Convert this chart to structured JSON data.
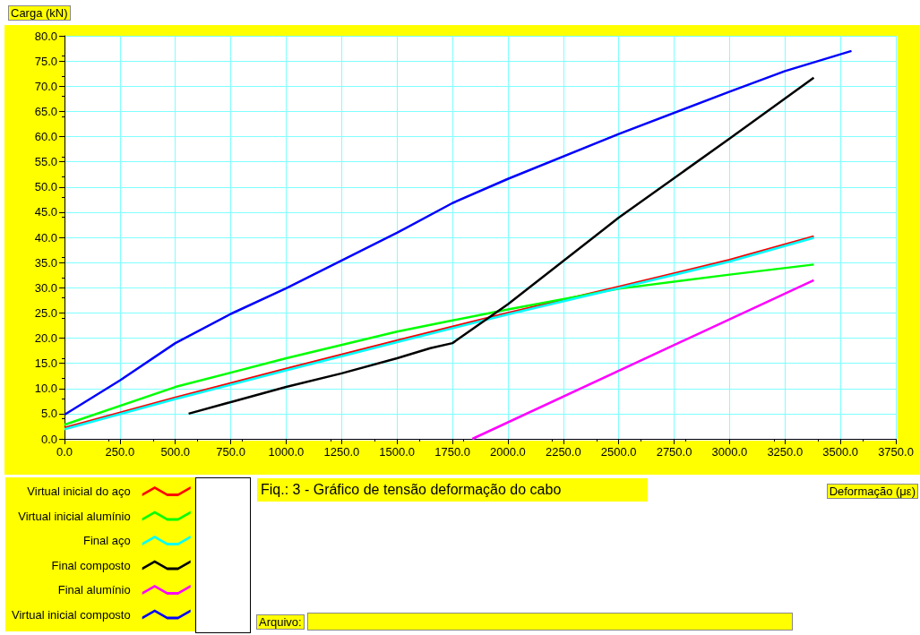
{
  "chart_data": {
    "type": "line",
    "title": "Fiq.: 3 - Gráfico de tensão deformação do cabo",
    "xlabel": "Deformação (με)",
    "ylabel": "Carga (kN)",
    "annotations": [
      "Arquivo:"
    ],
    "xlim": [
      0,
      3750
    ],
    "ylim": [
      0,
      80
    ],
    "xticks": [
      {
        "value": 0,
        "label": "0.0"
      },
      {
        "value": 250,
        "label": "250.0"
      },
      {
        "value": 500,
        "label": "500.0"
      },
      {
        "value": 750,
        "label": "750.0"
      },
      {
        "value": 1000,
        "label": "1000.0"
      },
      {
        "value": 1250,
        "label": "1250.0"
      },
      {
        "value": 1500,
        "label": "1500.0"
      },
      {
        "value": 1750,
        "label": "1750.0"
      },
      {
        "value": 2000,
        "label": "2000.0"
      },
      {
        "value": 2250,
        "label": "2250.0"
      },
      {
        "value": 2500,
        "label": "2500.0"
      },
      {
        "value": 2750,
        "label": "2750.0"
      },
      {
        "value": 3000,
        "label": "3000.0"
      },
      {
        "value": 3250,
        "label": "3250.0"
      },
      {
        "value": 3500,
        "label": "3500.0"
      },
      {
        "value": 3750,
        "label": "3750.0"
      }
    ],
    "yticks": [
      {
        "value": 0,
        "label": "0.0"
      },
      {
        "value": 5,
        "label": "5.0"
      },
      {
        "value": 10,
        "label": "10.0"
      },
      {
        "value": 15,
        "label": "15.0"
      },
      {
        "value": 20,
        "label": "20.0"
      },
      {
        "value": 25,
        "label": "25.0"
      },
      {
        "value": 30,
        "label": "30.0"
      },
      {
        "value": 35,
        "label": "35.0"
      },
      {
        "value": 40,
        "label": "40.0"
      },
      {
        "value": 45,
        "label": "45.0"
      },
      {
        "value": 50,
        "label": "50.0"
      },
      {
        "value": 55,
        "label": "55.0"
      },
      {
        "value": 60,
        "label": "60.0"
      },
      {
        "value": 65,
        "label": "65.0"
      },
      {
        "value": 70,
        "label": "70.0"
      },
      {
        "value": 75,
        "label": "75.0"
      },
      {
        "value": 80,
        "label": "80.0"
      }
    ],
    "grid": true,
    "legend": "bottom left",
    "marker": "none",
    "line_style": "solid",
    "series": [
      {
        "name": "Virtual inicial do aço",
        "color": "#ff0000",
        "x": [
          0,
          500,
          1000,
          1500,
          2000,
          2500,
          3000,
          3380
        ],
        "values": [
          2.2,
          8.2,
          13.9,
          19.5,
          25.0,
          30.2,
          35.5,
          40.2
        ]
      },
      {
        "name": "Virtual inicial alumínio",
        "color": "#00ff00",
        "x": [
          0,
          500,
          1000,
          1500,
          1750,
          2000,
          2500,
          3000,
          3380
        ],
        "values": [
          2.8,
          10.3,
          16.0,
          21.3,
          23.5,
          25.7,
          29.8,
          32.6,
          34.6
        ]
      },
      {
        "name": "Final aço",
        "color": "#00ffff",
        "x": [
          0,
          500,
          1000,
          1500,
          2000,
          2500,
          3000,
          3380
        ],
        "values": [
          1.9,
          7.9,
          13.6,
          19.2,
          24.7,
          29.9,
          35.2,
          39.9
        ]
      },
      {
        "name": "Final composto",
        "color": "#000000",
        "x": [
          560,
          750,
          1000,
          1250,
          1500,
          1650,
          1750,
          2000,
          2500,
          3000,
          3380
        ],
        "values": [
          5.0,
          7.3,
          10.3,
          13.0,
          16.0,
          18.0,
          19.0,
          26.7,
          43.9,
          59.6,
          71.7
        ]
      },
      {
        "name": "Final alumínio",
        "color": "#ff00ff",
        "x": [
          1840,
          3380
        ],
        "values": [
          0,
          31.5
        ]
      },
      {
        "name": "Virtual inicial composto",
        "color": "#0000ff",
        "x": [
          0,
          250,
          500,
          750,
          1000,
          1500,
          1750,
          2000,
          2500,
          3000,
          3250,
          3550
        ],
        "values": [
          4.8,
          11.6,
          19.0,
          24.8,
          29.9,
          40.9,
          46.8,
          51.6,
          60.5,
          68.9,
          73.0,
          77.0
        ]
      }
    ]
  }
}
